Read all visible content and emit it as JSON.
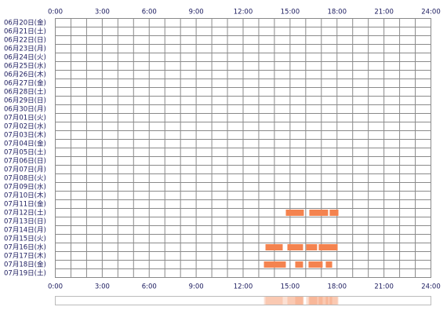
{
  "chart_data": {
    "type": "timeline",
    "categories": [
      "06月20日(金)",
      "06月21日(土)",
      "06月22日(日)",
      "06月23日(月)",
      "06月24日(火)",
      "06月25日(水)",
      "06月26日(木)",
      "06月27日(金)",
      "06月28日(土)",
      "06月29日(日)",
      "06月30日(月)",
      "07月01日(火)",
      "07月02日(水)",
      "07月03日(木)",
      "07月04日(金)",
      "07月05日(土)",
      "07月06日(日)",
      "07月07日(月)",
      "07月08日(火)",
      "07月09日(水)",
      "07月10日(木)",
      "07月11日(金)",
      "07月12日(土)",
      "07月13日(日)",
      "07月14日(月)",
      "07月15日(火)",
      "07月16日(水)",
      "07月17日(木)",
      "07月18日(金)",
      "07月19日(土)"
    ],
    "values": [
      [],
      [],
      [],
      [],
      [],
      [],
      [],
      [],
      [],
      [],
      [],
      [],
      [],
      [],
      [],
      [],
      [],
      [],
      [],
      [],
      [],
      [],
      [
        [
          14.73,
          15.88
        ],
        [
          16.23,
          17.43
        ],
        [
          17.53,
          18.09
        ]
      ],
      [],
      [],
      [],
      [
        [
          13.43,
          14.53
        ],
        [
          14.83,
          15.83
        ],
        [
          16.03,
          16.73
        ],
        [
          16.83,
          18.04
        ]
      ],
      [],
      [
        [
          13.33,
          14.73
        ],
        [
          15.33,
          15.83
        ],
        [
          16.18,
          17.08
        ],
        [
          17.28,
          17.69
        ]
      ],
      []
    ],
    "color": "#f4834f",
    "xlim": [
      0,
      24
    ],
    "xticks": [
      {
        "value": 0,
        "label": "0:00"
      },
      {
        "value": 3,
        "label": "3:00"
      },
      {
        "value": 6,
        "label": "6:00"
      },
      {
        "value": 9,
        "label": "9:00"
      },
      {
        "value": 12,
        "label": "12:00"
      },
      {
        "value": 15,
        "label": "15:00"
      },
      {
        "value": 18,
        "label": "18:00"
      },
      {
        "value": 21,
        "label": "21:00"
      },
      {
        "value": 24,
        "label": "24:00"
      }
    ],
    "grid": true
  }
}
